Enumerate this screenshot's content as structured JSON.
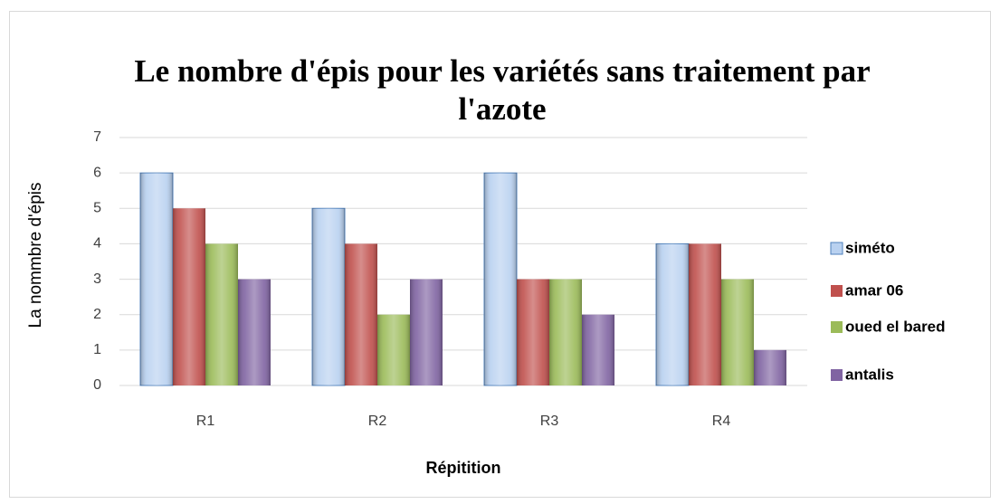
{
  "chart_data": {
    "type": "bar",
    "title": "Le nombre d'épis pour les variétés sans traitement par l'azote",
    "y_label": "La nommbre d'épis",
    "x_label": "Répitition",
    "categories": [
      "R1",
      "R2",
      "R3",
      "R4"
    ],
    "series": [
      {
        "name": "siméto",
        "color": "#b9d1f0",
        "values": [
          6,
          5,
          6,
          4
        ]
      },
      {
        "name": "amar 06",
        "color": "#c0504d",
        "values": [
          5,
          4,
          3,
          4
        ]
      },
      {
        "name": "oued el bared",
        "color": "#9bbb59",
        "values": [
          4,
          2,
          3,
          3
        ]
      },
      {
        "name": "antalis",
        "color": "#8064a2",
        "values": [
          3,
          3,
          2,
          1
        ]
      }
    ],
    "ylim": [
      0,
      7
    ],
    "yticks": [
      0,
      1,
      2,
      3,
      4,
      5,
      6,
      7
    ],
    "grid": true,
    "legend": "right"
  }
}
